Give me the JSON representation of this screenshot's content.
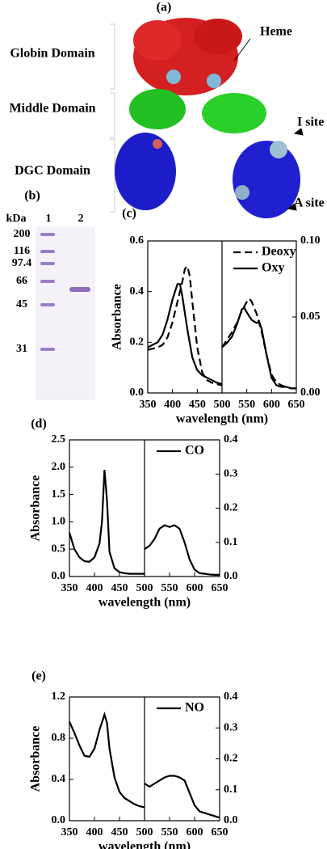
{
  "figure_a": {
    "label": "(a)",
    "domains": [
      "Globin Domain",
      "Middle Domain",
      "DGC Domain"
    ],
    "sites": [
      "Heme",
      "I site",
      "A site"
    ]
  },
  "gel": {
    "label": "(b)",
    "unit": "kDa",
    "lanes": [
      "1",
      "2"
    ],
    "markers": [
      "200",
      "116",
      "97.4",
      "66",
      "45",
      "31"
    ]
  },
  "chart_data": [
    {
      "type": "line",
      "label": "(c)",
      "x_label": "wavelength (nm)",
      "y_label": "Absorbance",
      "legend": "upper right",
      "xlim": [
        350,
        650
      ],
      "xticks": [
        350,
        400,
        450,
        500,
        550,
        600,
        650
      ],
      "ylim": [
        0,
        0.6
      ],
      "yticks": [
        {
          "value": 0,
          "label": "0.0"
        },
        0.2,
        0.4,
        0.6
      ],
      "y2lim": [
        0,
        0.1
      ],
      "y2ticks": [
        {
          "value": 0,
          "label": "0.00"
        },
        {
          "value": 0.05,
          "label": "0.05"
        },
        {
          "value": 0.1,
          "label": "0.10"
        }
      ],
      "series": [
        {
          "name": "Deoxy",
          "color": "#000000",
          "dashed": true,
          "x": [
            350,
            360,
            370,
            380,
            390,
            400,
            410,
            420,
            425,
            430,
            435,
            440,
            450,
            460,
            470,
            480,
            490,
            500
          ],
          "values": [
            0.17,
            0.175,
            0.18,
            0.19,
            0.22,
            0.28,
            0.36,
            0.44,
            0.49,
            0.5,
            0.46,
            0.36,
            0.18,
            0.08,
            0.05,
            0.04,
            0.035,
            0.03
          ]
        },
        {
          "name": "Oxy",
          "color": "#000000",
          "dashed": false,
          "x": [
            350,
            360,
            370,
            380,
            390,
            400,
            410,
            415,
            420,
            430,
            440,
            450,
            460,
            470,
            480,
            490,
            500
          ],
          "values": [
            0.18,
            0.19,
            0.2,
            0.23,
            0.29,
            0.37,
            0.43,
            0.43,
            0.38,
            0.25,
            0.14,
            0.09,
            0.07,
            0.06,
            0.05,
            0.04,
            0.035
          ]
        },
        {
          "axis": "y2",
          "color": "#000000",
          "dashed": true,
          "x": [
            500,
            510,
            520,
            530,
            540,
            550,
            555,
            560,
            570,
            580,
            590,
            600,
            610,
            620,
            630,
            640,
            650
          ],
          "values": [
            0.03,
            0.035,
            0.04,
            0.046,
            0.054,
            0.06,
            0.062,
            0.06,
            0.052,
            0.04,
            0.025,
            0.012,
            0.007,
            0.005,
            0.004,
            0.003,
            0.003
          ]
        },
        {
          "axis": "y2",
          "color": "#000000",
          "dashed": false,
          "x": [
            500,
            510,
            520,
            530,
            540,
            545,
            550,
            560,
            570,
            575,
            580,
            590,
            600,
            610,
            620,
            630,
            640,
            650
          ],
          "values": [
            0.03,
            0.033,
            0.037,
            0.045,
            0.055,
            0.056,
            0.053,
            0.048,
            0.046,
            0.047,
            0.042,
            0.025,
            0.01,
            0.005,
            0.004,
            0.004,
            0.003,
            0.003
          ]
        }
      ]
    },
    {
      "type": "line",
      "label": "(d)",
      "x_label": "wavelength (nm)",
      "y_label": "Absorbance",
      "legend": "upper right",
      "xlim": [
        350,
        650
      ],
      "xticks": [
        350,
        400,
        450,
        500,
        550,
        600,
        650
      ],
      "ylim": [
        0,
        2.5
      ],
      "yticks": [
        {
          "value": 0,
          "label": "0.0"
        },
        0.5,
        {
          "value": 1,
          "label": "1.0"
        },
        1.5,
        {
          "value": 2,
          "label": "2.0"
        },
        2.5
      ],
      "y2lim": [
        0,
        0.4
      ],
      "y2ticks": [
        {
          "value": 0,
          "label": "0.0"
        },
        0.1,
        0.2,
        0.3,
        0.4
      ],
      "series": [
        {
          "name": "CO",
          "color": "#000000",
          "dashed": false,
          "x": [
            350,
            360,
            370,
            380,
            390,
            400,
            410,
            415,
            420,
            425,
            430,
            440,
            450,
            460,
            470,
            480,
            490,
            500
          ],
          "values": [
            0.8,
            0.5,
            0.35,
            0.28,
            0.27,
            0.35,
            0.6,
            1.0,
            1.95,
            1.4,
            0.45,
            0.15,
            0.08,
            0.06,
            0.05,
            0.05,
            0.05,
            0.05
          ]
        },
        {
          "axis": "y2",
          "color": "#000000",
          "dashed": false,
          "x": [
            500,
            510,
            520,
            530,
            540,
            550,
            560,
            570,
            580,
            590,
            600,
            610,
            620,
            630,
            640,
            650
          ],
          "values": [
            0.08,
            0.09,
            0.11,
            0.14,
            0.15,
            0.145,
            0.15,
            0.14,
            0.1,
            0.05,
            0.02,
            0.01,
            0.008,
            0.006,
            0.005,
            0.005
          ]
        }
      ]
    },
    {
      "type": "line",
      "label": "(e)",
      "x_label": "wavelength (nm)",
      "y_label": "Absorbance",
      "legend": "upper right",
      "xlim": [
        350,
        650
      ],
      "xticks": [
        350,
        400,
        450,
        500,
        550,
        600,
        650
      ],
      "ylim": [
        0,
        1.2
      ],
      "yticks": [
        {
          "value": 0,
          "label": "0.0"
        },
        0.4,
        0.8,
        1.2
      ],
      "y2lim": [
        0,
        0.4
      ],
      "y2ticks": [
        {
          "value": 0,
          "label": "0.0"
        },
        0.1,
        0.2,
        0.3,
        0.4
      ],
      "series": [
        {
          "name": "NO",
          "color": "#000000",
          "dashed": false,
          "x": [
            350,
            360,
            370,
            380,
            390,
            400,
            410,
            420,
            425,
            430,
            440,
            450,
            460,
            470,
            480,
            490,
            500
          ],
          "values": [
            0.96,
            0.85,
            0.73,
            0.63,
            0.62,
            0.7,
            0.88,
            1.03,
            0.95,
            0.7,
            0.42,
            0.28,
            0.22,
            0.19,
            0.16,
            0.14,
            0.13
          ]
        },
        {
          "axis": "y2",
          "color": "#000000",
          "dashed": false,
          "x": [
            500,
            510,
            520,
            530,
            540,
            550,
            560,
            570,
            580,
            590,
            600,
            610,
            620,
            630,
            640,
            650
          ],
          "values": [
            0.12,
            0.11,
            0.12,
            0.13,
            0.14,
            0.145,
            0.145,
            0.14,
            0.13,
            0.09,
            0.05,
            0.03,
            0.025,
            0.02,
            0.015,
            0.01
          ]
        }
      ]
    }
  ]
}
